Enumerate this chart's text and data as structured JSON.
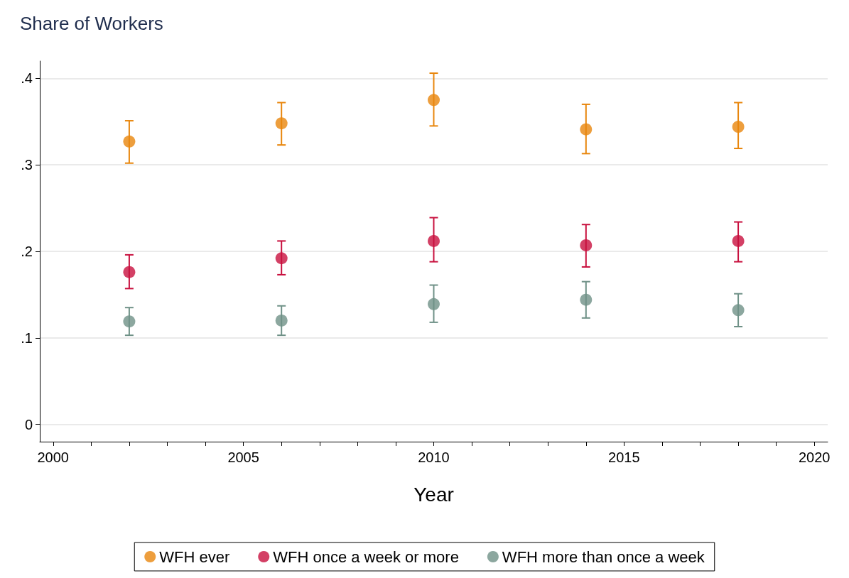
{
  "chart_data": {
    "type": "scatter",
    "ylabel": "Share of Workers",
    "xlabel": "Year",
    "xlim": [
      1999.65,
      2020.35
    ],
    "ylim": [
      -0.02,
      0.42
    ],
    "xticks": [
      2000,
      {
        "value": 2001,
        "label": null
      },
      {
        "value": 2002,
        "label": null
      },
      {
        "value": 2003,
        "label": null
      },
      {
        "value": 2004,
        "label": null
      },
      2005,
      {
        "value": 2006,
        "label": null
      },
      {
        "value": 2007,
        "label": null
      },
      {
        "value": 2008,
        "label": null
      },
      {
        "value": 2009,
        "label": null
      },
      2010,
      {
        "value": 2011,
        "label": null
      },
      {
        "value": 2012,
        "label": null
      },
      {
        "value": 2013,
        "label": null
      },
      {
        "value": 2014,
        "label": null
      },
      2015,
      {
        "value": 2016,
        "label": null
      },
      {
        "value": 2017,
        "label": null
      },
      {
        "value": 2018,
        "label": null
      },
      {
        "value": 2019,
        "label": null
      },
      2020
    ],
    "yticks": [
      0,
      {
        "value": 0.1,
        "label": ".1"
      },
      {
        "value": 0.2,
        "label": ".2"
      },
      {
        "value": 0.3,
        "label": ".3"
      },
      {
        "value": 0.4,
        "label": ".4"
      }
    ],
    "x": [
      2002,
      2006,
      2010,
      2014,
      2018
    ],
    "series": [
      {
        "name": "WFH ever",
        "color": "#e8860c",
        "values": [
          0.327,
          0.348,
          0.375,
          0.341,
          0.344
        ],
        "errors": [
          [
            0.302,
            0.351
          ],
          [
            0.323,
            0.372
          ],
          [
            0.345,
            0.406
          ],
          [
            0.313,
            0.37
          ],
          [
            0.319,
            0.372
          ]
        ]
      },
      {
        "name": "WFH once a week or more",
        "color": "#c8103e",
        "values": [
          0.176,
          0.192,
          0.212,
          0.207,
          0.212
        ],
        "errors": [
          [
            0.157,
            0.196
          ],
          [
            0.173,
            0.212
          ],
          [
            0.188,
            0.239
          ],
          [
            0.182,
            0.231
          ],
          [
            0.188,
            0.234
          ]
        ]
      },
      {
        "name": "WFH more than once a week",
        "color": "#6f9187",
        "values": [
          0.119,
          0.12,
          0.139,
          0.144,
          0.132
        ],
        "errors": [
          [
            0.103,
            0.135
          ],
          [
            0.103,
            0.137
          ],
          [
            0.118,
            0.161
          ],
          [
            0.123,
            0.165
          ],
          [
            0.113,
            0.151
          ]
        ]
      }
    ],
    "marker": "circle",
    "grid": "y",
    "legend": "bottom"
  }
}
